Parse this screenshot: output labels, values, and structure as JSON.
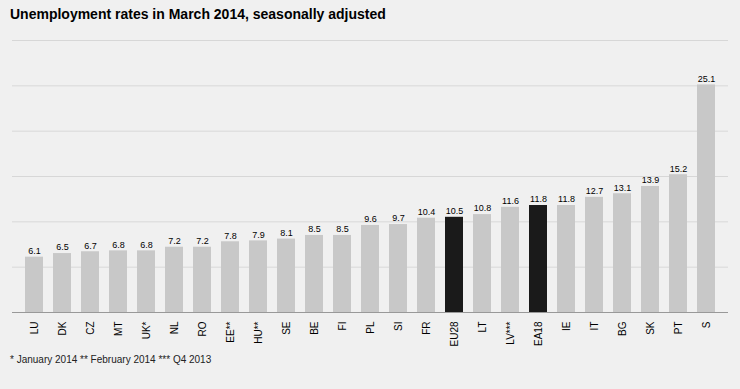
{
  "chart_data": {
    "type": "bar",
    "title": "Unemployment rates in March 2014, seasonally adjusted",
    "categories": [
      "LU",
      "DK",
      "CZ",
      "MT",
      "UK*",
      "NL",
      "RO",
      "EE**",
      "HU**",
      "SE",
      "BE",
      "FI",
      "PL",
      "SI",
      "FR",
      "EU28",
      "LT",
      "LV***",
      "EA18",
      "IE",
      "IT",
      "BG",
      "SK",
      "PT",
      "S"
    ],
    "values": [
      6.1,
      6.5,
      6.7,
      6.8,
      6.8,
      7.2,
      7.2,
      7.8,
      7.9,
      8.1,
      8.5,
      8.5,
      9.6,
      9.7,
      10.4,
      10.5,
      10.8,
      11.6,
      11.8,
      11.8,
      12.7,
      13.1,
      13.9,
      15.2,
      25.1
    ],
    "colors": [
      "#c8c8c8",
      "#c8c8c8",
      "#c8c8c8",
      "#c8c8c8",
      "#c8c8c8",
      "#c8c8c8",
      "#c8c8c8",
      "#c8c8c8",
      "#c8c8c8",
      "#c8c8c8",
      "#c8c8c8",
      "#c8c8c8",
      "#c8c8c8",
      "#c8c8c8",
      "#c8c8c8",
      "#1a1a1a",
      "#c8c8c8",
      "#c8c8c8",
      "#1a1a1a",
      "#c8c8c8",
      "#c8c8c8",
      "#c8c8c8",
      "#c8c8c8",
      "#c8c8c8",
      "#c8c8c8"
    ],
    "ylim": [
      0,
      30
    ],
    "yticks": [
      0,
      5,
      10,
      15,
      20,
      25,
      30
    ],
    "grid": true,
    "data_labels": true,
    "tick_labels": "x",
    "annotations": [
      "* January 2014   ** February 2014   *** Q4 2013"
    ]
  }
}
